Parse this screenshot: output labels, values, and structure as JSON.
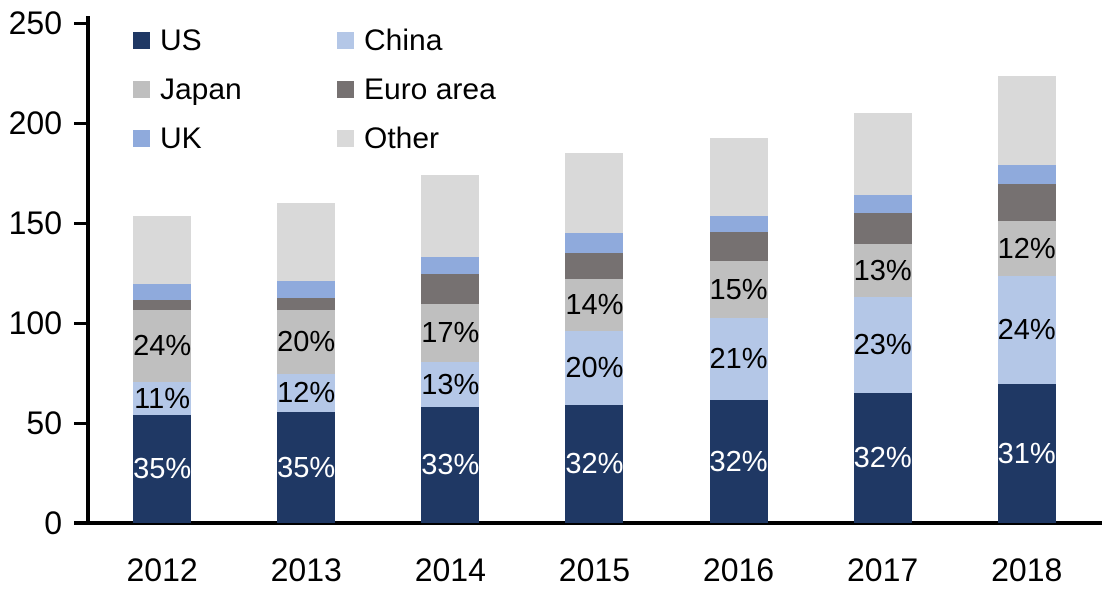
{
  "chart_data": {
    "type": "bar",
    "stacked": true,
    "title": "",
    "categories": [
      "2012",
      "2013",
      "2014",
      "2015",
      "2016",
      "2017",
      "2018"
    ],
    "series": [
      {
        "name": "US",
        "color": "#1F3864",
        "values": [
          54,
          55.5,
          58,
          59,
          61.5,
          65,
          69.5
        ],
        "labels": [
          "35%",
          "35%",
          "33%",
          "32%",
          "32%",
          "32%",
          "31%"
        ],
        "label_color": "#FFFFFF"
      },
      {
        "name": "China",
        "color": "#B4C7E7",
        "values": [
          16.5,
          19,
          22.5,
          37,
          41,
          48,
          54
        ],
        "labels": [
          "11%",
          "12%",
          "13%",
          "20%",
          "21%",
          "23%",
          "24%"
        ],
        "label_color": "#000000"
      },
      {
        "name": "Japan",
        "color": "#BFBFBF",
        "values": [
          36,
          32,
          29,
          26,
          28.5,
          26.5,
          27.5
        ],
        "labels": [
          "24%",
          "20%",
          "17%",
          "14%",
          "15%",
          "13%",
          "12%"
        ],
        "label_color": "#000000"
      },
      {
        "name": "Euro area",
        "color": "#767171",
        "values": [
          5,
          6,
          15,
          13,
          14.5,
          15.5,
          18.5
        ],
        "labels": null,
        "label_color": null
      },
      {
        "name": "UK",
        "color": "#8FAADC",
        "values": [
          8,
          8.5,
          8.5,
          10,
          8,
          9,
          9.5
        ],
        "labels": null,
        "label_color": null
      },
      {
        "name": "Other",
        "color": "#D9D9D9",
        "values": [
          34,
          39,
          41,
          40,
          39,
          41,
          44.5
        ],
        "labels": null,
        "label_color": null
      }
    ],
    "approx_totals": [
      153.5,
      160,
      174,
      185,
      192.5,
      205,
      223.5
    ],
    "xlabel": "",
    "ylabel": "",
    "y_axis": {
      "min": 0,
      "max": 250,
      "tick_step": 50,
      "ticks": [
        0,
        50,
        100,
        150,
        200,
        250
      ]
    },
    "legend": {
      "position": "top-left",
      "columns": 2,
      "order": [
        "US",
        "China",
        "Japan",
        "Euro area",
        "UK",
        "Other"
      ]
    },
    "grid": false,
    "axis_color": "#000000"
  }
}
